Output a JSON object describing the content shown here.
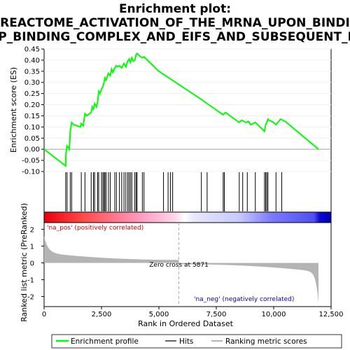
{
  "chart_data": {
    "type": "line",
    "title_lines": [
      "Enrichment plot:",
      "REACTOME_ACTIVATION_OF_THE_MRNA_UPON_BINDI",
      "AP_BINDING_COMPLEX_AND_EIFS_AND_SUBSEQUENT_BI"
    ],
    "xlabel": "Rank in Ordered Dataset",
    "ylabel_top": "Enrichment score (ES)",
    "ylabel_bottom": "Ranked list metric (PreRanked)",
    "es_ylim": [
      -0.1,
      0.45
    ],
    "es_yticks": [
      "0.45",
      "0.40",
      "0.35",
      "0.30",
      "0.25",
      "0.20",
      "0.15",
      "0.10",
      "0.05",
      "0.00",
      "-0.05",
      "-0.10"
    ],
    "es_ytick_values": [
      0.45,
      0.4,
      0.35,
      0.3,
      0.25,
      0.2,
      0.15,
      0.1,
      0.05,
      0.0,
      -0.05,
      -0.1
    ],
    "metric_ylim": [
      -2.6,
      2.4
    ],
    "metric_yticks": [
      "2",
      "1",
      "0",
      "-1",
      "-2"
    ],
    "metric_ytick_values": [
      2,
      1,
      0,
      -1,
      -2
    ],
    "xlim": [
      0,
      12500
    ],
    "xticks": [
      "0",
      "2,500",
      "5,000",
      "7,500",
      "10,000",
      "12,500"
    ],
    "xtick_values": [
      0,
      2500,
      5000,
      7500,
      10000,
      12500
    ],
    "n_genes": 11950,
    "es_profile": {
      "x": [
        0,
        940,
        950,
        1000,
        1100,
        1140,
        1200,
        1300,
        1580,
        1620,
        1700,
        1780,
        1860,
        2050,
        2100,
        2150,
        2200,
        2280,
        2330,
        2380,
        2430,
        2500,
        2560,
        2610,
        2650,
        2700,
        2800,
        2880,
        2940,
        3000,
        3080,
        3150,
        3200,
        3280,
        3380,
        3480,
        3560,
        3640,
        3700,
        3760,
        3820,
        3880,
        3950,
        4010,
        4050,
        4150,
        4280,
        4350,
        5000,
        6900,
        7100,
        7800,
        7900,
        8500,
        8600,
        8800,
        8900,
        9000,
        9200,
        9600,
        9650,
        9700,
        9750,
        9800,
        10000,
        10100,
        10300,
        10500,
        11950
      ],
      "y": [
        0.0,
        -0.075,
        -0.02,
        0.015,
        0.0,
        0.08,
        0.12,
        0.11,
        0.1,
        0.115,
        0.105,
        0.16,
        0.15,
        0.165,
        0.19,
        0.18,
        0.205,
        0.19,
        0.21,
        0.26,
        0.25,
        0.27,
        0.28,
        0.3,
        0.32,
        0.31,
        0.34,
        0.33,
        0.36,
        0.345,
        0.365,
        0.375,
        0.37,
        0.375,
        0.365,
        0.385,
        0.37,
        0.395,
        0.405,
        0.39,
        0.41,
        0.395,
        0.4,
        0.425,
        0.43,
        0.42,
        0.41,
        0.415,
        0.35,
        0.22,
        0.205,
        0.155,
        0.165,
        0.12,
        0.13,
        0.12,
        0.125,
        0.11,
        0.12,
        0.08,
        0.11,
        0.12,
        0.135,
        0.13,
        0.12,
        0.11,
        0.135,
        0.125,
        0.0
      ]
    },
    "hit_positions": [
      940,
      1000,
      1140,
      1200,
      1620,
      1780,
      2050,
      2150,
      2200,
      2330,
      2380,
      2500,
      2560,
      2610,
      2650,
      2700,
      2800,
      2880,
      3080,
      3150,
      3280,
      3380,
      3480,
      3560,
      3640,
      3700,
      3760,
      3820,
      3950,
      4010,
      4050,
      4280,
      4350,
      5200,
      5400,
      5500,
      5600,
      6850,
      7100,
      7800,
      7850,
      8500,
      8650,
      8850,
      9200,
      9600,
      9650,
      9700,
      9750,
      10100,
      10350
    ],
    "zero_cross_rank": 5871,
    "zero_cross_label": "Zero cross at 5871",
    "pos_label": "'na_pos' (positively correlated)",
    "neg_label": "'na_neg' (negatively correlated)",
    "legend": [
      "Enrichment profile",
      "Hits",
      "Ranking metric scores"
    ],
    "colors": {
      "profile": "#00ff00",
      "hits": "#000000",
      "metric_fill": "#b4b4b4",
      "pos_text": "#e00000",
      "neg_text": "#0000d0",
      "zero_line": "#aaaaaa",
      "grid": "#f0f0f0"
    }
  }
}
